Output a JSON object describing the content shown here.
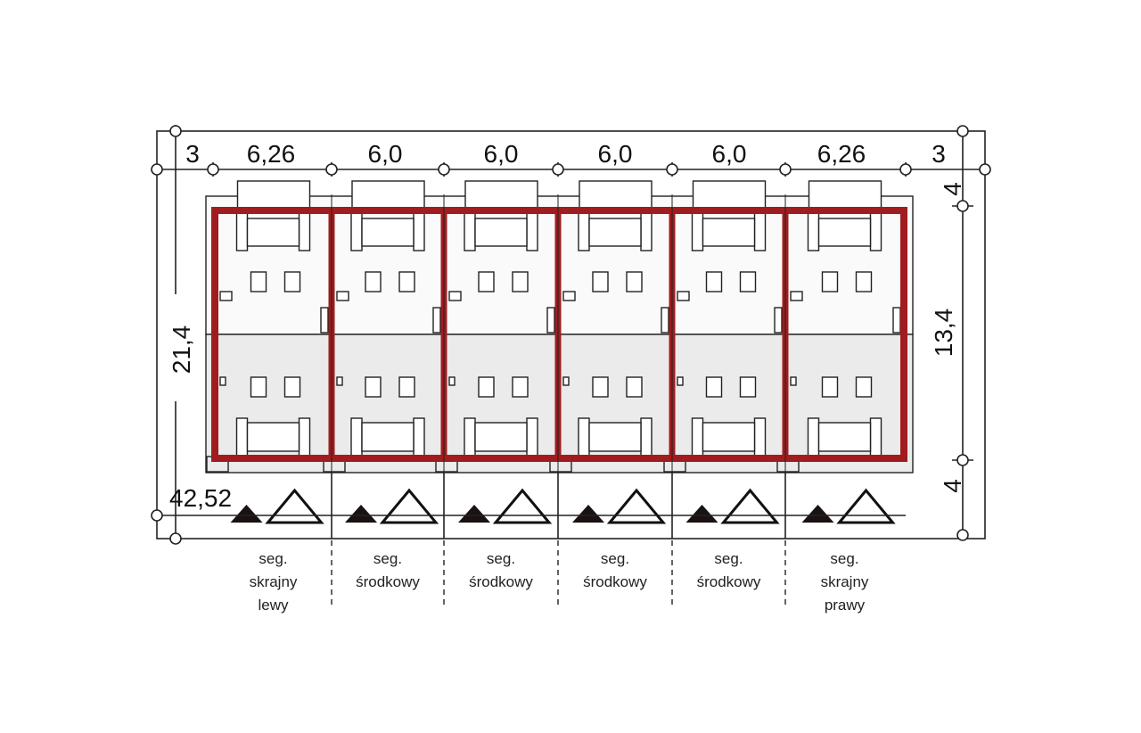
{
  "colors": {
    "wall": "#a01c1f",
    "upper_fill": "#fafafa",
    "lower_fill": "#ebebeb",
    "line": "#222222"
  },
  "dimensions": {
    "top": [
      "3",
      "6,26",
      "6,0",
      "6,0",
      "6,0",
      "6,0",
      "6,26",
      "3"
    ],
    "left_total": "21,4",
    "right_depth": "13,4",
    "right_top": "4",
    "right_bottom": "4",
    "total_width": "42,52"
  },
  "segments": [
    {
      "label_lines": [
        "seg.",
        "skrajny",
        "lewy"
      ]
    },
    {
      "label_lines": [
        "seg.",
        "środkowy"
      ]
    },
    {
      "label_lines": [
        "seg.",
        "środkowy"
      ]
    },
    {
      "label_lines": [
        "seg.",
        "środkowy"
      ]
    },
    {
      "label_lines": [
        "seg.",
        "środkowy"
      ]
    },
    {
      "label_lines": [
        "seg.",
        "skrajny",
        "prawy"
      ]
    }
  ]
}
